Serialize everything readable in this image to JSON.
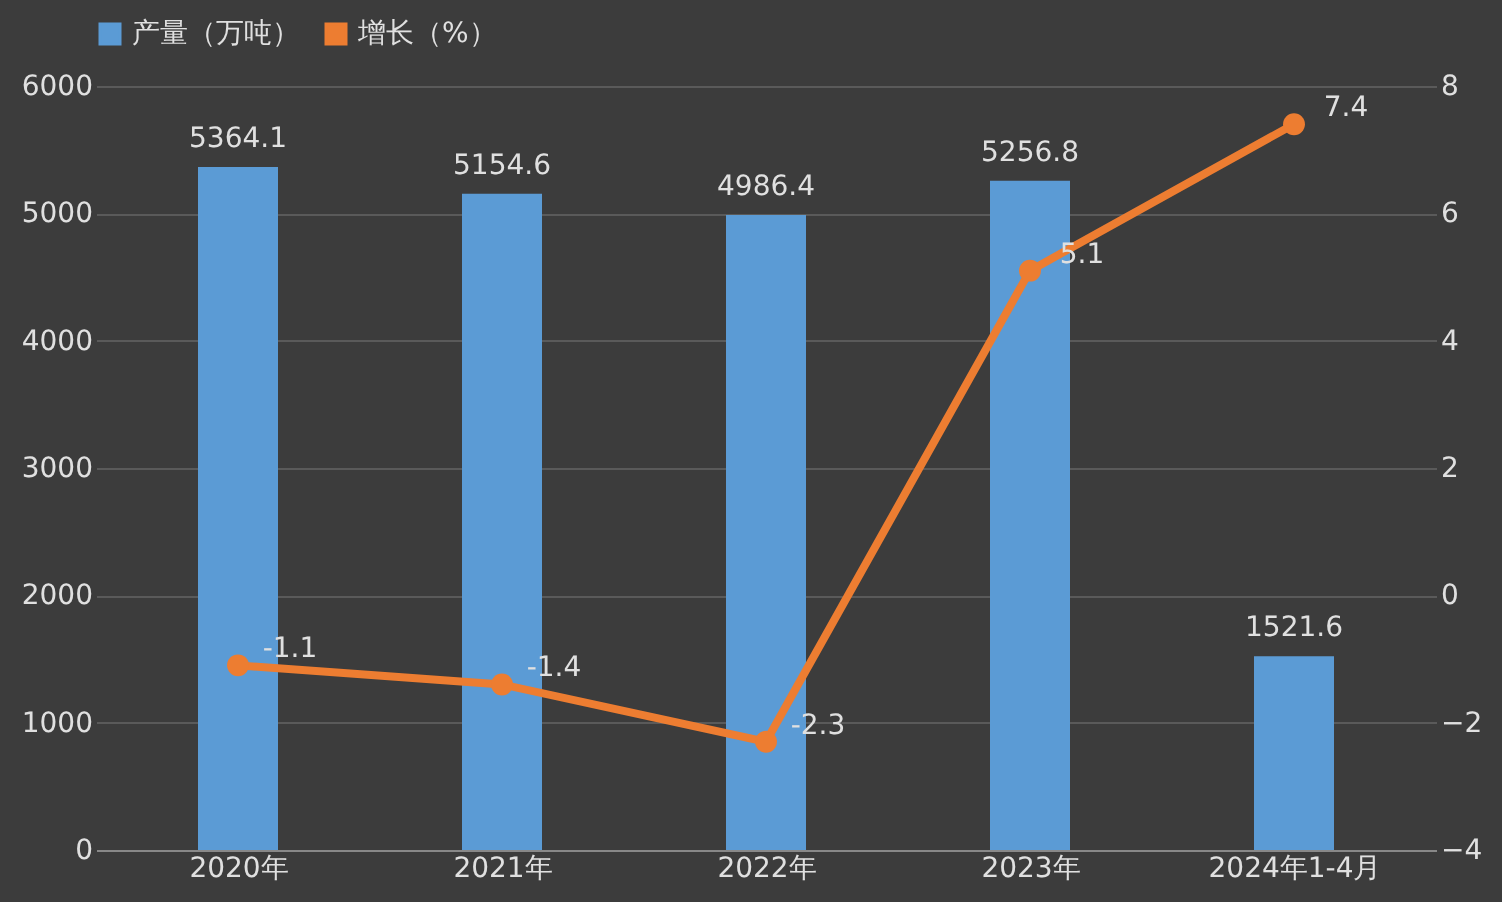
{
  "chart_data": {
    "type": "bar",
    "categories": [
      "2020年",
      "2021年",
      "2022年",
      "2023年",
      "2024年1-4月"
    ],
    "series": [
      {
        "name": "产量（万吨）",
        "color": "#5b9bd5",
        "values": [
          5364.1,
          5154.6,
          4986.4,
          5256.8,
          1521.6
        ]
      },
      {
        "name": "增长（%）",
        "type": "line",
        "axis": "y2",
        "color": "#ed7d31",
        "values": [
          -1.1,
          -1.4,
          -2.3,
          5.1,
          7.4
        ]
      }
    ],
    "ylim": [
      0,
      6000
    ],
    "yticks": [
      0,
      1000,
      2000,
      3000,
      4000,
      5000,
      6000
    ],
    "y2lim": [
      -4,
      8
    ],
    "y2ticks": [
      -4,
      -2,
      0,
      2,
      4,
      6,
      8
    ],
    "grid": "y",
    "legend": "top",
    "marker": "circle",
    "data_labels": true
  }
}
